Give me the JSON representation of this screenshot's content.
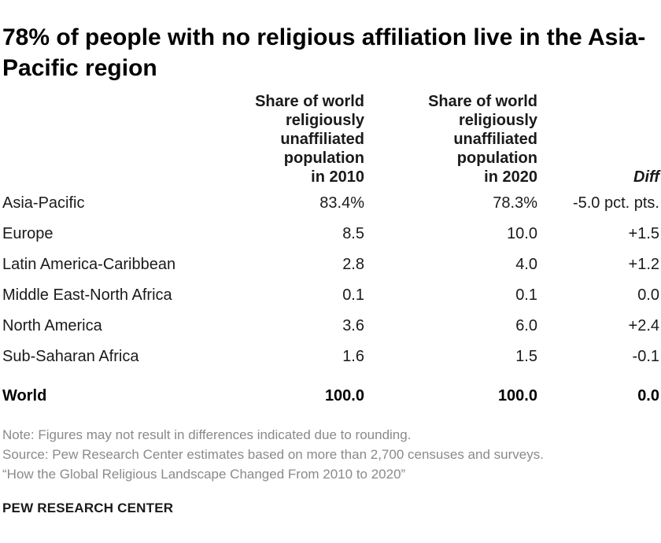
{
  "title": "78% of people with no religious affiliation live in the Asia-Pacific region",
  "columns": {
    "c2010": [
      "Share of world",
      "religiously",
      "unaffiliated",
      "population",
      "in 2010"
    ],
    "c2020": [
      "Share of world",
      "religiously",
      "unaffiliated",
      "population",
      "in 2020"
    ],
    "diff": "Diff"
  },
  "chart_data": {
    "type": "table",
    "title": "78% of people with no religious affiliation live in the Asia-Pacific region",
    "headers": [
      "",
      "Share of world religiously unaffiliated population in 2010",
      "Share of world religiously unaffiliated population in 2020",
      "Diff"
    ],
    "rows": [
      {
        "region": "Asia-Pacific",
        "y2010": "83.4%",
        "y2020": "78.3%",
        "diff": "-5.0 pct. pts."
      },
      {
        "region": "Europe",
        "y2010": "8.5",
        "y2020": "10.0",
        "diff": "+1.5"
      },
      {
        "region": "Latin America-Caribbean",
        "y2010": "2.8",
        "y2020": "4.0",
        "diff": "+1.2"
      },
      {
        "region": "Middle East-North Africa",
        "y2010": "0.1",
        "y2020": "0.1",
        "diff": "0.0"
      },
      {
        "region": "North America",
        "y2010": "3.6",
        "y2020": "6.0",
        "diff": "+2.4"
      },
      {
        "region": "Sub-Saharan Africa",
        "y2010": "1.6",
        "y2020": "1.5",
        "diff": "-0.1"
      }
    ],
    "total": {
      "region": "World",
      "y2010": "100.0",
      "y2020": "100.0",
      "diff": "0.0"
    }
  },
  "notes": {
    "note": "Note: Figures may not result in differences indicated due to rounding.",
    "source": "Source: Pew Research Center estimates based on more than 2,700 censuses and surveys.",
    "report": "“How the Global Religious Landscape Changed From 2010 to 2020”"
  },
  "footer": "PEW RESEARCH CENTER"
}
